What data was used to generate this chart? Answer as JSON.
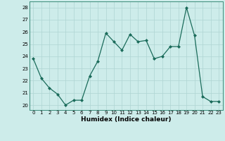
{
  "x": [
    0,
    1,
    2,
    3,
    4,
    5,
    6,
    7,
    8,
    9,
    10,
    11,
    12,
    13,
    14,
    15,
    16,
    17,
    18,
    19,
    20,
    21,
    22,
    23
  ],
  "y": [
    23.8,
    22.2,
    21.4,
    20.9,
    20.0,
    20.4,
    20.4,
    22.4,
    23.6,
    25.9,
    25.2,
    24.5,
    25.8,
    25.2,
    25.3,
    23.8,
    24.0,
    24.8,
    24.8,
    28.0,
    25.7,
    20.7,
    20.3,
    20.3
  ],
  "xlabel": "Humidex (Indice chaleur)",
  "ylabel": "",
  "line_color": "#1a6b5a",
  "marker_color": "#1a6b5a",
  "bg_color": "#cdecea",
  "grid_color": "#aed4d2",
  "yticks": [
    20,
    21,
    22,
    23,
    24,
    25,
    26,
    27,
    28
  ],
  "xticks": [
    0,
    1,
    2,
    3,
    4,
    5,
    6,
    7,
    8,
    9,
    10,
    11,
    12,
    13,
    14,
    15,
    16,
    17,
    18,
    19,
    20,
    21,
    22,
    23
  ],
  "ylim": [
    19.6,
    28.5
  ],
  "xlim": [
    -0.5,
    23.5
  ],
  "tick_fontsize": 5.0,
  "xlabel_fontsize": 6.5,
  "xlabel_bold": true
}
